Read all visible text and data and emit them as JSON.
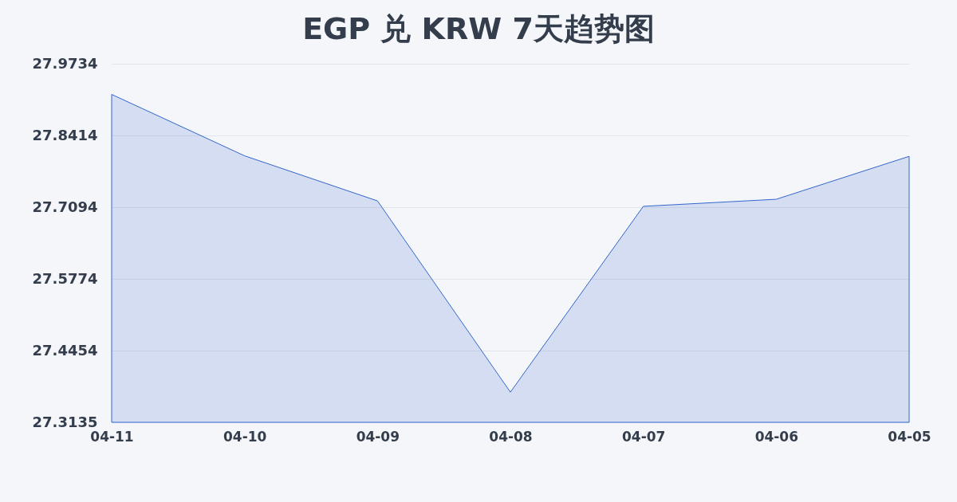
{
  "chart_data": {
    "type": "area",
    "title": "EGP 兑 KRW 7天趋势图",
    "categories": [
      "04-11",
      "04-10",
      "04-09",
      "04-08",
      "04-07",
      "04-06",
      "04-05"
    ],
    "series": [
      {
        "color": "#3366cc",
        "values": [
          27.917,
          27.804,
          27.721,
          27.369,
          27.711,
          27.724,
          27.803
        ]
      }
    ],
    "ylim": [
      27.3135,
      27.9734
    ],
    "yticks": [
      27.3135,
      27.4454,
      27.5774,
      27.7094,
      27.8414,
      27.9734
    ],
    "grid": "y"
  }
}
